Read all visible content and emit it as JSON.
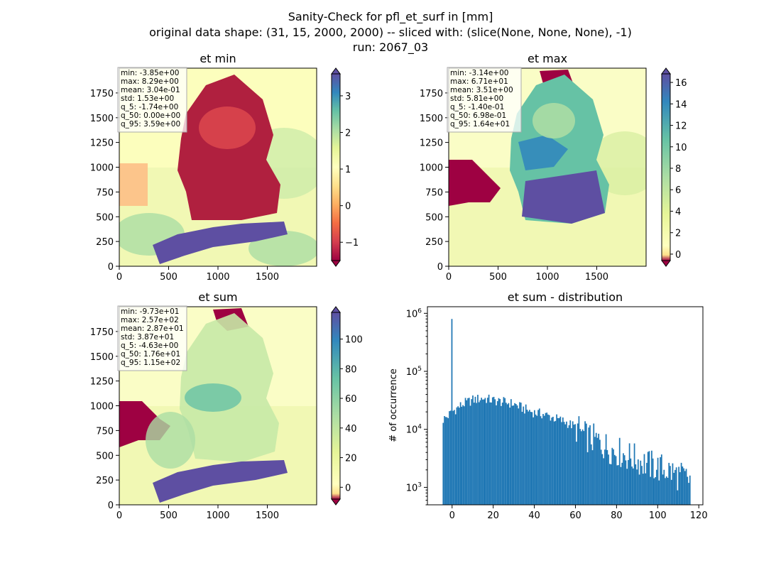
{
  "figure": {
    "suptitle": [
      "Sanity-Check for pfl_et_surf in [mm]",
      "original data shape: (31, 15, 2000, 2000) -- sliced with: (slice(None, None, None), -1)",
      "run: 2067_03"
    ]
  },
  "colors": {
    "hist_bar": "#1f77b4",
    "cmap_spectral": [
      "#9e0142",
      "#d53e4f",
      "#f46d43",
      "#fdae61",
      "#fee08b",
      "#ffffbf",
      "#e6f598",
      "#abdda4",
      "#66c2a5",
      "#3288bd",
      "#5e4fa2"
    ],
    "masked_region": "#9e0142"
  },
  "chart_data": [
    {
      "type": "heatmap",
      "title": "et min",
      "xlim": [
        0,
        2000
      ],
      "ylim": [
        0,
        2000
      ],
      "xticks": [
        "0",
        "500",
        "1000",
        "1500"
      ],
      "yticks": [
        "0",
        "250",
        "500",
        "750",
        "1000",
        "1250",
        "1500",
        "1750"
      ],
      "colorbar": {
        "min": -1.5,
        "max": 3.6,
        "ticks": [
          -1,
          0,
          1,
          2,
          3
        ],
        "tick_labels": [
          "−1",
          "0",
          "1",
          "2",
          "3"
        ],
        "extend": "both"
      },
      "stats": [
        "min: -3.85e+00",
        "max: 8.29e+00",
        "mean: 3.04e-01",
        "std: 1.53e+00",
        "q_5: -1.74e+00",
        "q_50: 0.00e+00",
        "q_95: 3.59e+00"
      ]
    },
    {
      "type": "heatmap",
      "title": "et max",
      "xlim": [
        0,
        2000
      ],
      "ylim": [
        0,
        2000
      ],
      "xticks": [
        "0",
        "500",
        "1000",
        "1500"
      ],
      "yticks": [
        "0",
        "250",
        "500",
        "750",
        "1000",
        "1250",
        "1500",
        "1750"
      ],
      "colorbar": {
        "min": -0.6,
        "max": 16.8,
        "ticks": [
          0,
          2,
          4,
          6,
          8,
          10,
          12,
          14,
          16
        ],
        "tick_labels": [
          "0",
          "2",
          "4",
          "6",
          "8",
          "10",
          "12",
          "14",
          "16"
        ],
        "extend": "both"
      },
      "stats": [
        "min: -3.14e+00",
        "max: 6.71e+01",
        "mean: 3.51e+00",
        "std: 5.81e+00",
        "q_5: -1.40e-01",
        "q_50: 6.98e-01",
        "q_95: 1.64e+01"
      ]
    },
    {
      "type": "heatmap",
      "title": "et sum",
      "xlim": [
        0,
        2000
      ],
      "ylim": [
        0,
        2000
      ],
      "xticks": [
        "0",
        "500",
        "1000",
        "1500"
      ],
      "yticks": [
        "0",
        "250",
        "500",
        "750",
        "1000",
        "1250",
        "1500",
        "1750"
      ],
      "colorbar": {
        "min": -8,
        "max": 118,
        "ticks": [
          0,
          20,
          40,
          60,
          80,
          100
        ],
        "tick_labels": [
          "0",
          "20",
          "40",
          "60",
          "80",
          "100"
        ],
        "extend": "both"
      },
      "stats": [
        "min: -9.73e+01",
        "max: 2.57e+02",
        "mean: 2.87e+01",
        "std: 3.87e+01",
        "q_5: -4.63e+00",
        "q_50: 1.76e+01",
        "q_95: 1.15e+02"
      ]
    },
    {
      "type": "bar",
      "title": "et sum - distribution",
      "ylabel": "# of occurrence",
      "xlim": [
        -12,
        122
      ],
      "ylim": [
        500,
        1300000
      ],
      "yscale": "log",
      "xticks": [
        0,
        20,
        40,
        60,
        80,
        100,
        120
      ],
      "yticks": [
        {
          "value": 1000,
          "label": "10^3"
        },
        {
          "value": 10000,
          "label": "10^4"
        },
        {
          "value": 100000,
          "label": "10^5"
        },
        {
          "value": 1000000,
          "label": "10^6"
        }
      ],
      "x": [
        -4.6,
        115.4
      ],
      "bin_width": 0.6,
      "spike": {
        "x": 0,
        "count": 800000
      },
      "profile": [
        [
          -4.6,
          14500
        ],
        [
          -2,
          17000
        ],
        [
          0,
          20000
        ],
        [
          3,
          24000
        ],
        [
          6,
          28000
        ],
        [
          10,
          32000
        ],
        [
          15,
          34500
        ],
        [
          20,
          31500
        ],
        [
          25,
          29500
        ],
        [
          30,
          27500
        ],
        [
          35,
          22500
        ],
        [
          40,
          19500
        ],
        [
          45,
          18000
        ],
        [
          50,
          15500
        ],
        [
          55,
          13500
        ],
        [
          60,
          11000
        ],
        [
          65,
          7500
        ],
        [
          70,
          6500
        ],
        [
          75,
          5000
        ],
        [
          80,
          4200
        ],
        [
          85,
          3500
        ],
        [
          90,
          3000
        ],
        [
          95,
          2500
        ],
        [
          100,
          2200
        ],
        [
          105,
          2000
        ],
        [
          110,
          1600
        ],
        [
          115.4,
          1350
        ]
      ]
    }
  ]
}
